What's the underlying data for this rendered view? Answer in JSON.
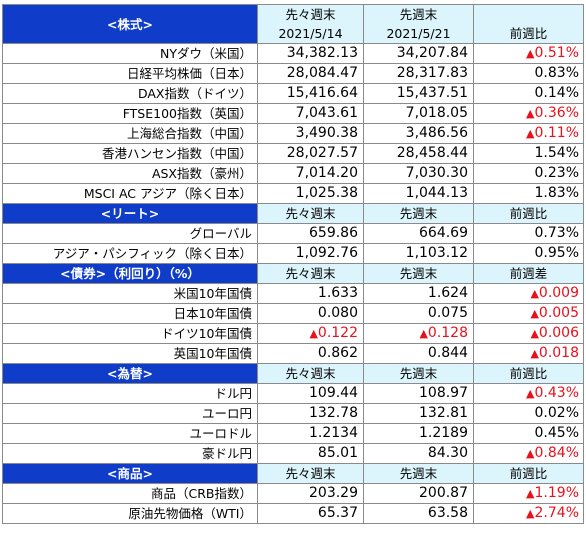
{
  "stocks": {
    "title": "<株式>",
    "head1": [
      "先々週末",
      "先週末",
      ""
    ],
    "head2": [
      "2021/5/14",
      "2021/5/21",
      "前週比"
    ],
    "rows": [
      {
        "name": "NYダウ（米国）",
        "v1": "34,382.13",
        "v2": "34,207.84",
        "arrow": "▲",
        "chg": "0.51%",
        "neg": true
      },
      {
        "name": "日経平均株価（日本）",
        "v1": "28,084.47",
        "v2": "28,317.83",
        "arrow": "",
        "chg": "0.83%",
        "neg": false
      },
      {
        "name": "DAX指数（ドイツ）",
        "v1": "15,416.64",
        "v2": "15,437.51",
        "arrow": "",
        "chg": "0.14%",
        "neg": false
      },
      {
        "name": "FTSE100指数（英国）",
        "v1": "7,043.61",
        "v2": "7,018.05",
        "arrow": "▲",
        "chg": "0.36%",
        "neg": true
      },
      {
        "name": "上海総合指数（中国）",
        "v1": "3,490.38",
        "v2": "3,486.56",
        "arrow": "▲",
        "chg": "0.11%",
        "neg": true
      },
      {
        "name": "香港ハンセン指数（中国）",
        "v1": "28,027.57",
        "v2": "28,458.44",
        "arrow": "",
        "chg": "1.54%",
        "neg": false
      },
      {
        "name": "ASX指数（豪州）",
        "v1": "7,014.20",
        "v2": "7,030.30",
        "arrow": "",
        "chg": "0.23%",
        "neg": false
      },
      {
        "name": "MSCI AC アジア（除く日本）",
        "v1": "1,025.38",
        "v2": "1,044.13",
        "arrow": "",
        "chg": "1.83%",
        "neg": false
      }
    ]
  },
  "reit": {
    "title": "<リート>",
    "head": [
      "先々週末",
      "先週末",
      "前週比"
    ],
    "rows": [
      {
        "name": "グローバル",
        "v1": "659.86",
        "v2": "664.69",
        "arrow": "",
        "chg": "0.73%",
        "neg": false
      },
      {
        "name": "アジア・パシフィック（除く日本）",
        "v1": "1,092.76",
        "v2": "1,103.12",
        "arrow": "",
        "chg": "0.95%",
        "neg": false
      }
    ]
  },
  "bonds": {
    "title": "<債券>（利回り）（%）",
    "head": [
      "先々週末",
      "先週末",
      "前週差"
    ],
    "rows": [
      {
        "name": "米国10年国債",
        "v1arrow": "",
        "v1": "1.633",
        "v1neg": false,
        "v2arrow": "",
        "v2": "1.624",
        "v2neg": false,
        "arrow": "▲",
        "chg": "0.009",
        "neg": true
      },
      {
        "name": "日本10年国債",
        "v1arrow": "",
        "v1": "0.080",
        "v1neg": false,
        "v2arrow": "",
        "v2": "0.075",
        "v2neg": false,
        "arrow": "▲",
        "chg": "0.005",
        "neg": true
      },
      {
        "name": "ドイツ10年国債",
        "v1arrow": "▲",
        "v1": "0.122",
        "v1neg": true,
        "v2arrow": "▲",
        "v2": "0.128",
        "v2neg": true,
        "arrow": "▲",
        "chg": "0.006",
        "neg": true
      },
      {
        "name": "英国10年国債",
        "v1arrow": "",
        "v1": "0.862",
        "v1neg": false,
        "v2arrow": "",
        "v2": "0.844",
        "v2neg": false,
        "arrow": "▲",
        "chg": "0.018",
        "neg": true
      }
    ]
  },
  "fx": {
    "title": "<為替>",
    "head": [
      "先々週末",
      "先週末",
      "前週比"
    ],
    "rows": [
      {
        "name": "ドル円",
        "v1": "109.44",
        "v2": "108.97",
        "arrow": "▲",
        "chg": "0.43%",
        "neg": true
      },
      {
        "name": "ユーロ円",
        "v1": "132.78",
        "v2": "132.81",
        "arrow": "",
        "chg": "0.02%",
        "neg": false
      },
      {
        "name": "ユーロドル",
        "v1": "1.2134",
        "v2": "1.2189",
        "arrow": "",
        "chg": "0.45%",
        "neg": false
      },
      {
        "name": "豪ドル円",
        "v1": "85.01",
        "v2": "84.30",
        "arrow": "▲",
        "chg": "0.84%",
        "neg": true
      }
    ]
  },
  "commodities": {
    "title": "<商品>",
    "head": [
      "先々週末",
      "先週末",
      "前週比"
    ],
    "rows": [
      {
        "name": "商品（CRB指数）",
        "v1": "203.29",
        "v2": "200.87",
        "arrow": "▲",
        "chg": "1.19%",
        "neg": true
      },
      {
        "name": "原油先物価格（WTI）",
        "v1": "65.37",
        "v2": "63.58",
        "arrow": "▲",
        "chg": "2.74%",
        "neg": true
      }
    ]
  },
  "colors": {
    "section_header_bg": "#0f3cc9",
    "column_header_bg": "#dcf4fb",
    "negative_text": "#e8101a"
  }
}
